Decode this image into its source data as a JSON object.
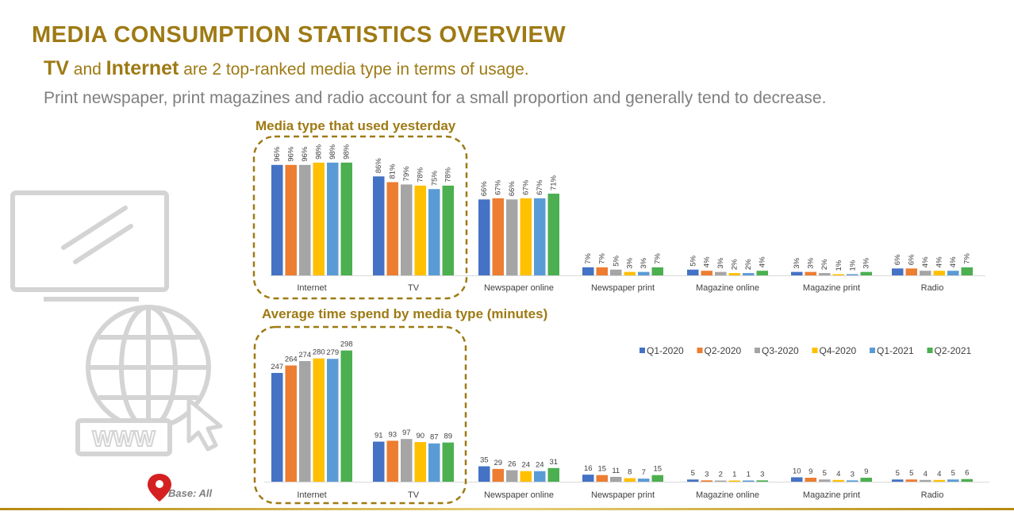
{
  "header": {
    "title": "MEDIA CONSUMPTION STATISTICS OVERVIEW",
    "subtitle": {
      "tv": "TV",
      "and": " and ",
      "internet": "Internet",
      "rest": " are 2 top-ranked media type in terms of usage."
    },
    "description": "Print newspaper, print magazines and radio account for a small proportion and generally tend to decrease."
  },
  "base_note": "Base: All",
  "colors": {
    "accent": "#9e7a14",
    "series": [
      "#4472c4",
      "#ed7d31",
      "#a5a5a5",
      "#ffc000",
      "#5b9bd5",
      "#4caf50"
    ]
  },
  "icons": [
    "monitor-icon",
    "globe-www-icon",
    "cursor-icon",
    "map-pin-icon"
  ],
  "chart_data": [
    {
      "type": "bar",
      "title": "Media type that used yesterday",
      "unit": "%",
      "label_orientation": "vertical",
      "categories": [
        "Internet",
        "TV",
        "Newspaper online",
        "Newspaper print",
        "Magazine online",
        "Magazine print",
        "Radio"
      ],
      "highlighted_categories": [
        "Internet",
        "TV"
      ],
      "ylim": [
        0,
        100
      ],
      "series": [
        {
          "name": "Q1-2020",
          "values": [
            96,
            86,
            66,
            7,
            5,
            3,
            6
          ]
        },
        {
          "name": "Q2-2020",
          "values": [
            96,
            81,
            67,
            7,
            4,
            3,
            6
          ]
        },
        {
          "name": "Q3-2020",
          "values": [
            96,
            79,
            66,
            5,
            3,
            2,
            4
          ]
        },
        {
          "name": "Q4-2020",
          "values": [
            98,
            78,
            67,
            3,
            2,
            1,
            4
          ]
        },
        {
          "name": "Q1-2021",
          "values": [
            98,
            75,
            67,
            3,
            2,
            1,
            4
          ]
        },
        {
          "name": "Q2-2021",
          "values": [
            98,
            78,
            71,
            7,
            4,
            3,
            7
          ]
        }
      ]
    },
    {
      "type": "bar",
      "title": "Average time spend by media type (minutes)",
      "unit": "",
      "label_orientation": "horizontal",
      "categories": [
        "Internet",
        "TV",
        "Newspaper online",
        "Newspaper print",
        "Magazine online",
        "Magazine print",
        "Radio"
      ],
      "highlighted_categories": [
        "Internet",
        "TV"
      ],
      "legend": "top-right",
      "ylim": [
        0,
        310
      ],
      "series": [
        {
          "name": "Q1-2020",
          "values": [
            247,
            91,
            35,
            16,
            5,
            10,
            5
          ]
        },
        {
          "name": "Q2-2020",
          "values": [
            264,
            93,
            29,
            15,
            3,
            9,
            5
          ]
        },
        {
          "name": "Q3-2020",
          "values": [
            274,
            97,
            26,
            11,
            2,
            5,
            4
          ]
        },
        {
          "name": "Q4-2020",
          "values": [
            280,
            90,
            24,
            8,
            1,
            4,
            4
          ]
        },
        {
          "name": "Q1-2021",
          "values": [
            279,
            87,
            24,
            7,
            1,
            3,
            5
          ]
        },
        {
          "name": "Q2-2021",
          "values": [
            298,
            89,
            31,
            15,
            3,
            9,
            6
          ]
        }
      ]
    }
  ]
}
